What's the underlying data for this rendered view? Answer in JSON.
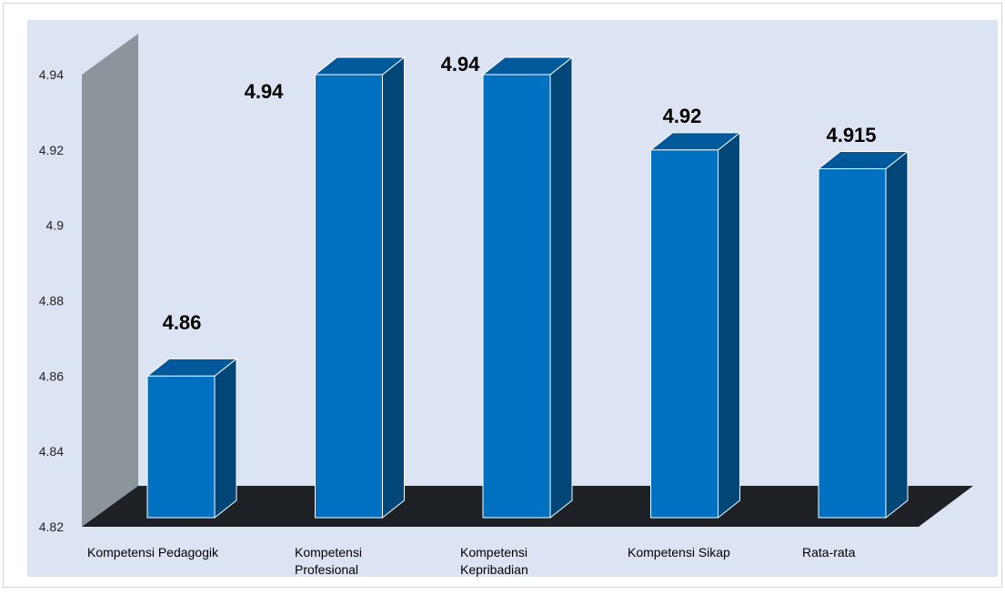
{
  "chart_data": {
    "type": "bar",
    "title": "",
    "xlabel": "",
    "ylabel": "",
    "categories": [
      "Kompetensi Pedagogik",
      "Kompetensi Profesional",
      "Kompetensi Kepribadian",
      "Kompetensi Sikap",
      "Rata-rata"
    ],
    "category_lines": [
      [
        "Kompetensi Pedagogik"
      ],
      [
        "Kompetensi",
        "Profesional"
      ],
      [
        "Kompetensi",
        "Kepribadian"
      ],
      [
        "Kompetensi Sikap"
      ],
      [
        "Rata-rata"
      ]
    ],
    "series": [
      {
        "values": [
          4.86,
          4.94,
          4.94,
          4.92,
          4.915
        ]
      }
    ],
    "data_labels": [
      "4.86",
      "4.94",
      "4.94",
      "4.92",
      "4.915"
    ],
    "ylim": [
      4.82,
      4.94
    ],
    "yticks": [
      "4.82",
      "4.84",
      "4.86",
      "4.88",
      "4.9",
      "4.92",
      "4.94"
    ],
    "grid": false,
    "legend": "none",
    "style": "3d-column",
    "colors": {
      "bar_front": "#0070C0",
      "bar_side": "#004677",
      "bar_top": "#00599A",
      "floor": "#1E2227",
      "back_wall": "#8C949C",
      "plot_background": "#DCE3F2"
    }
  }
}
